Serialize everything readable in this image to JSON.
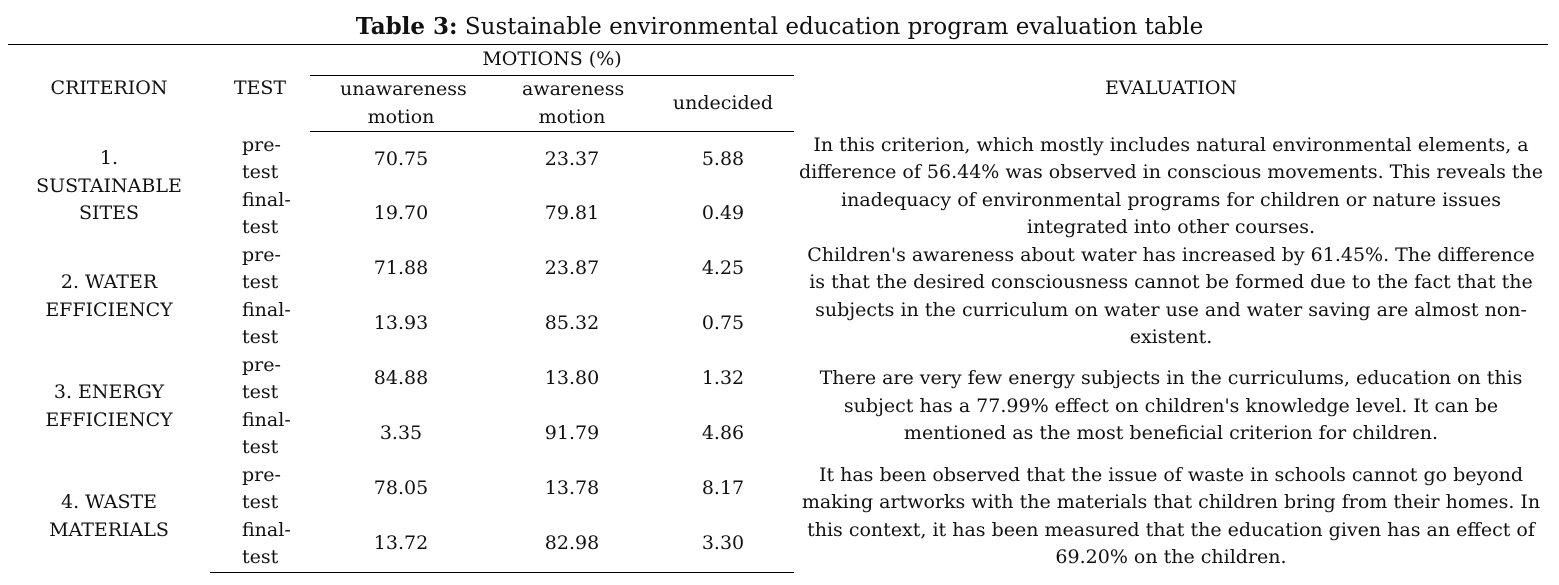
{
  "caption": {
    "label": "Table 3:",
    "text": "Sustainable environmental education program evaluation table"
  },
  "headers": {
    "criterion": "CRITERION",
    "test": "TEST",
    "motions": "MOTIONS (%)",
    "unawareness": "unawareness motion",
    "awareness": "awareness motion",
    "undecided": "undecided",
    "evaluation": "EVALUATION"
  },
  "rows": [
    {
      "criterion": "1. SUSTAINABLE SITES",
      "pre": {
        "test": "pre-test",
        "unawareness": "70.75",
        "awareness": "23.37",
        "undecided": "5.88"
      },
      "final": {
        "test": "final-test",
        "unawareness": "19.70",
        "awareness": "79.81",
        "undecided": "0.49"
      },
      "evaluation": "In this criterion, which mostly includes natural environmental elements, a difference of  56.44% was observed in conscious movements. This reveals the inadequacy of environmental programs for children or nature issues integrated into other courses."
    },
    {
      "criterion": "2. WATER EFFICIENCY",
      "pre": {
        "test": "pre-test",
        "unawareness": "71.88",
        "awareness": "23.87",
        "undecided": "4.25"
      },
      "final": {
        "test": "final-test",
        "unawareness": "13.93",
        "awareness": "85.32",
        "undecided": "0.75"
      },
      "evaluation": "Children's awareness about water has increased by 61.45%. The difference is that the desired consciousness cannot be formed due to the fact that the subjects in the curriculum on water use and water saving are almost non-existent."
    },
    {
      "criterion": "3.  ENERGY EFFICIENCY",
      "pre": {
        "test": "pre-test",
        "unawareness": "84.88",
        "awareness": "13.80",
        "undecided": "1.32"
      },
      "final": {
        "test": "final-test",
        "unawareness": "3.35",
        "awareness": "91.79",
        "undecided": "4.86"
      },
      "evaluation": "There are very few energy subjects in the curriculums, education on this subject has a 77.99% effect on children's knowledge level. It can be mentioned as the most beneficial criterion for children."
    },
    {
      "criterion": "4. WASTE MATERIALS",
      "pre": {
        "test": "pre-test",
        "unawareness": "78.05",
        "awareness": "13.78",
        "undecided": "8.17"
      },
      "final": {
        "test": "final-test",
        "unawareness": "13.72",
        "awareness": "82.98",
        "undecided": "3.30"
      },
      "evaluation": "It has been observed that the issue of waste in schools cannot go beyond making artworks with the materials that children bring from their homes. In this context, it has been measured that the education given has an effect of  69.20% on the children."
    }
  ]
}
